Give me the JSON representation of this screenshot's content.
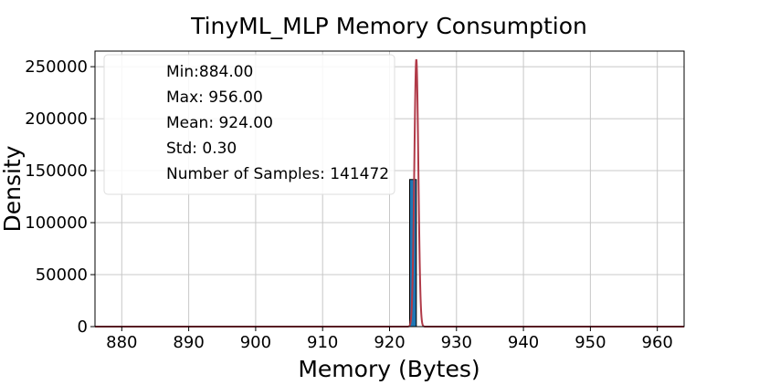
{
  "chart_data": {
    "type": "bar",
    "title": "TinyML_MLP Memory Consumption",
    "xlabel": "Memory (Bytes)",
    "ylabel": "Density",
    "xlim": [
      876,
      964
    ],
    "ylim": [
      0,
      265000
    ],
    "xticks": [
      880,
      890,
      900,
      910,
      920,
      930,
      940,
      950,
      960
    ],
    "yticks": [
      0,
      50000,
      100000,
      150000,
      200000,
      250000
    ],
    "grid": true,
    "histogram": {
      "bins": [
        {
          "x0": 923.0,
          "x1": 924.0,
          "value": 141472
        }
      ],
      "color": "#1f77b4"
    },
    "density_curve": {
      "type": "line",
      "mean": 924.0,
      "std": 0.3,
      "peak": 257000,
      "color": "#b03a48"
    },
    "stats_box": {
      "placement": "top-left",
      "lines": [
        "Min:884.00",
        "Max: 956.00",
        "Mean: 924.00",
        "Std: 0.30",
        "Number of Samples: 141472"
      ]
    }
  }
}
